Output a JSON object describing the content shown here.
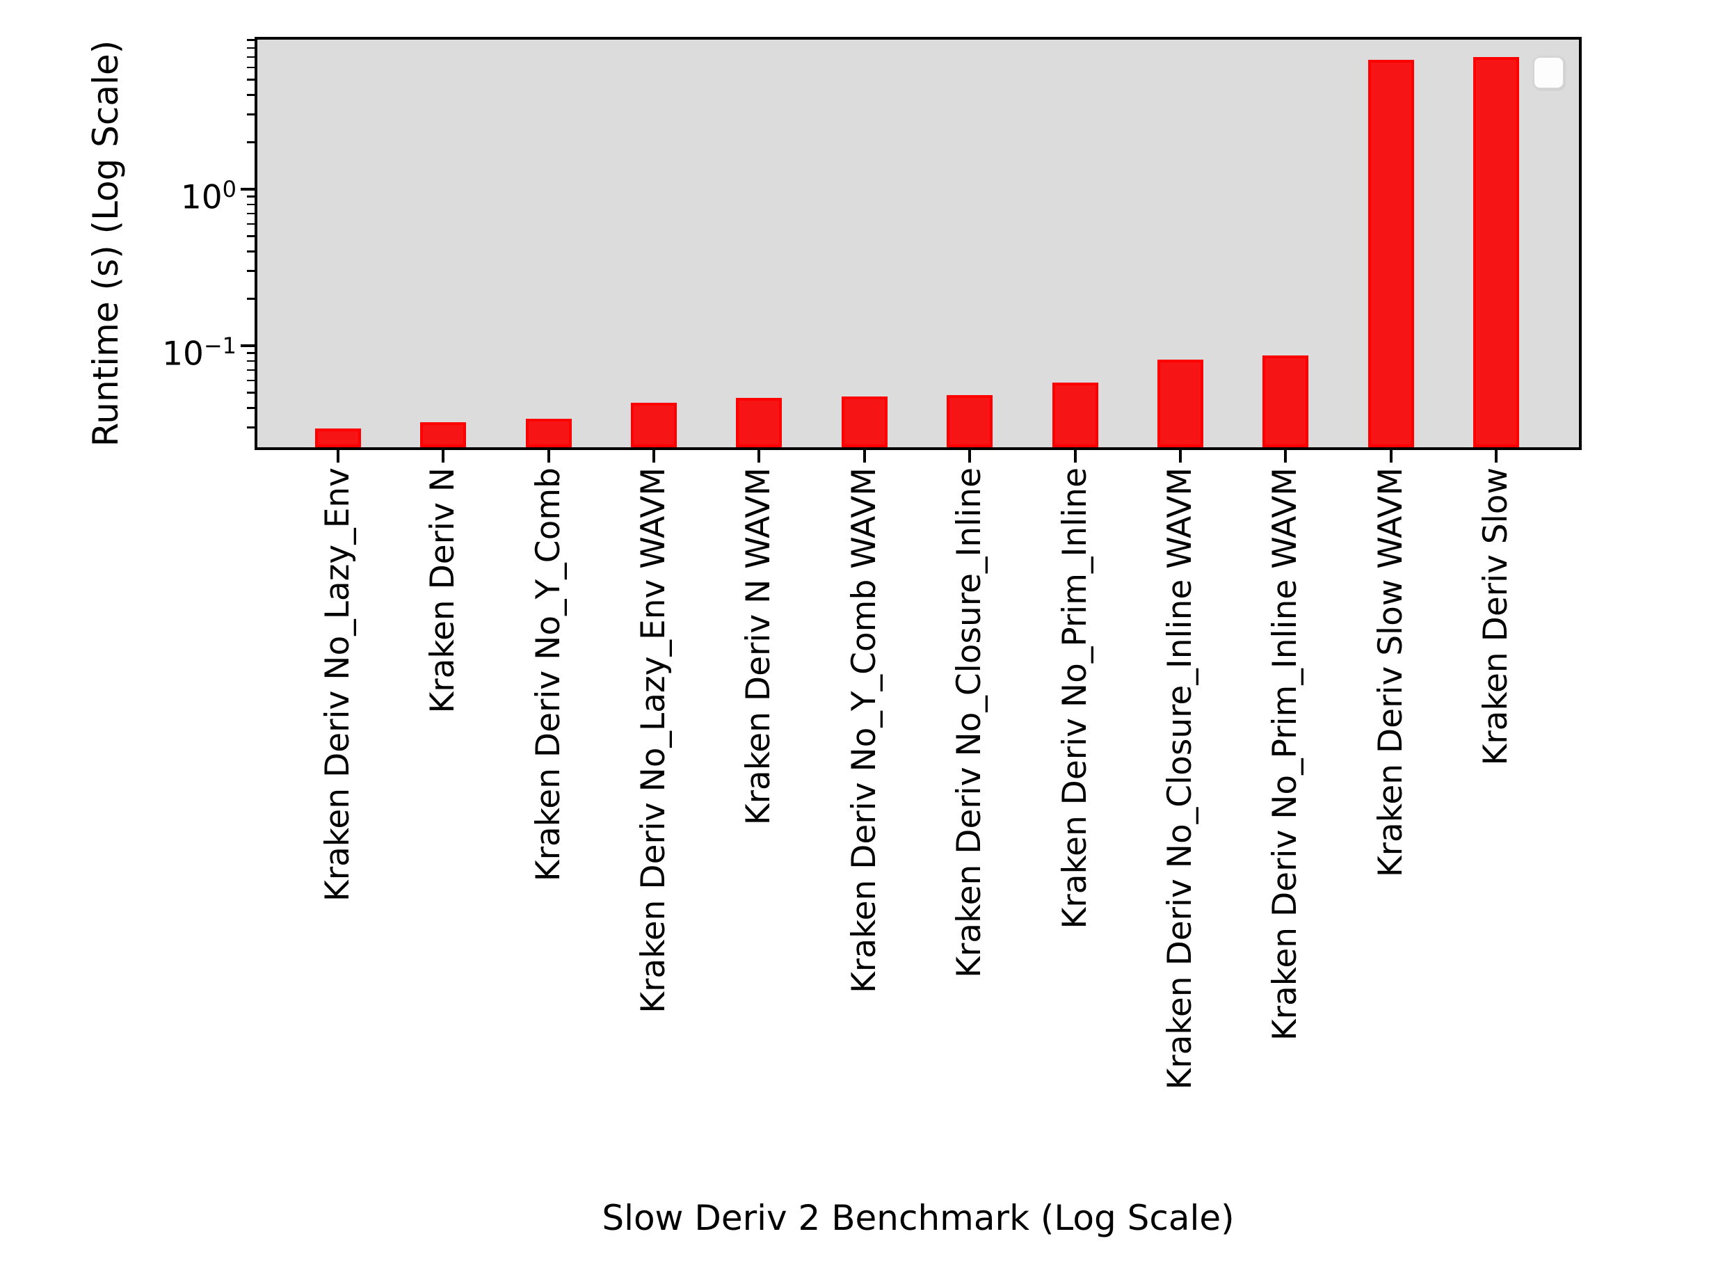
{
  "figure": {
    "background": "#ffffff",
    "plot_background": "#dcdcdc",
    "axis_color": "#000000"
  },
  "chart_data": {
    "type": "bar",
    "title": "",
    "xlabel": "Slow Deriv 2 Benchmark (Log Scale)",
    "ylabel": "Runtime (s) (Log Scale)",
    "yscale": "log",
    "ylim": [
      0.0224,
      9.05
    ],
    "grid": false,
    "legend_position": "upper right",
    "legend_entries": [],
    "bar_color": "#f71414",
    "bar_edge_color": "#ff0000",
    "categories": [
      "Kraken Deriv No_Lazy_Env",
      "Kraken Deriv N",
      "Kraken Deriv No_Y_Comb",
      "Kraken Deriv No_Lazy_Env WAVM",
      "Kraken Deriv N WAVM",
      "Kraken Deriv No_Y_Comb WAVM",
      "Kraken Deriv No_Closure_Inline",
      "Kraken Deriv No_Prim_Inline",
      "Kraken Deriv No_Closure_Inline WAVM",
      "Kraken Deriv No_Prim_Inline WAVM",
      "Kraken Deriv Slow WAVM",
      "Kraken Deriv Slow"
    ],
    "values": [
      0.0295,
      0.0325,
      0.034,
      0.0432,
      0.0462,
      0.0472,
      0.0482,
      0.058,
      0.0815,
      0.0868,
      6.7,
      7.0
    ],
    "y_major_ticks": [
      {
        "value": 1,
        "base": "10",
        "exp": "0"
      },
      {
        "value": 0.1,
        "base": "10",
        "exp": "−1"
      }
    ],
    "y_minor_ticks": [
      0.03,
      0.04,
      0.05,
      0.06,
      0.07,
      0.08,
      0.09,
      0.2,
      0.3,
      0.4,
      0.5,
      0.6,
      0.7,
      0.8,
      0.9,
      2,
      3,
      4,
      5,
      6,
      7,
      8,
      9
    ]
  }
}
